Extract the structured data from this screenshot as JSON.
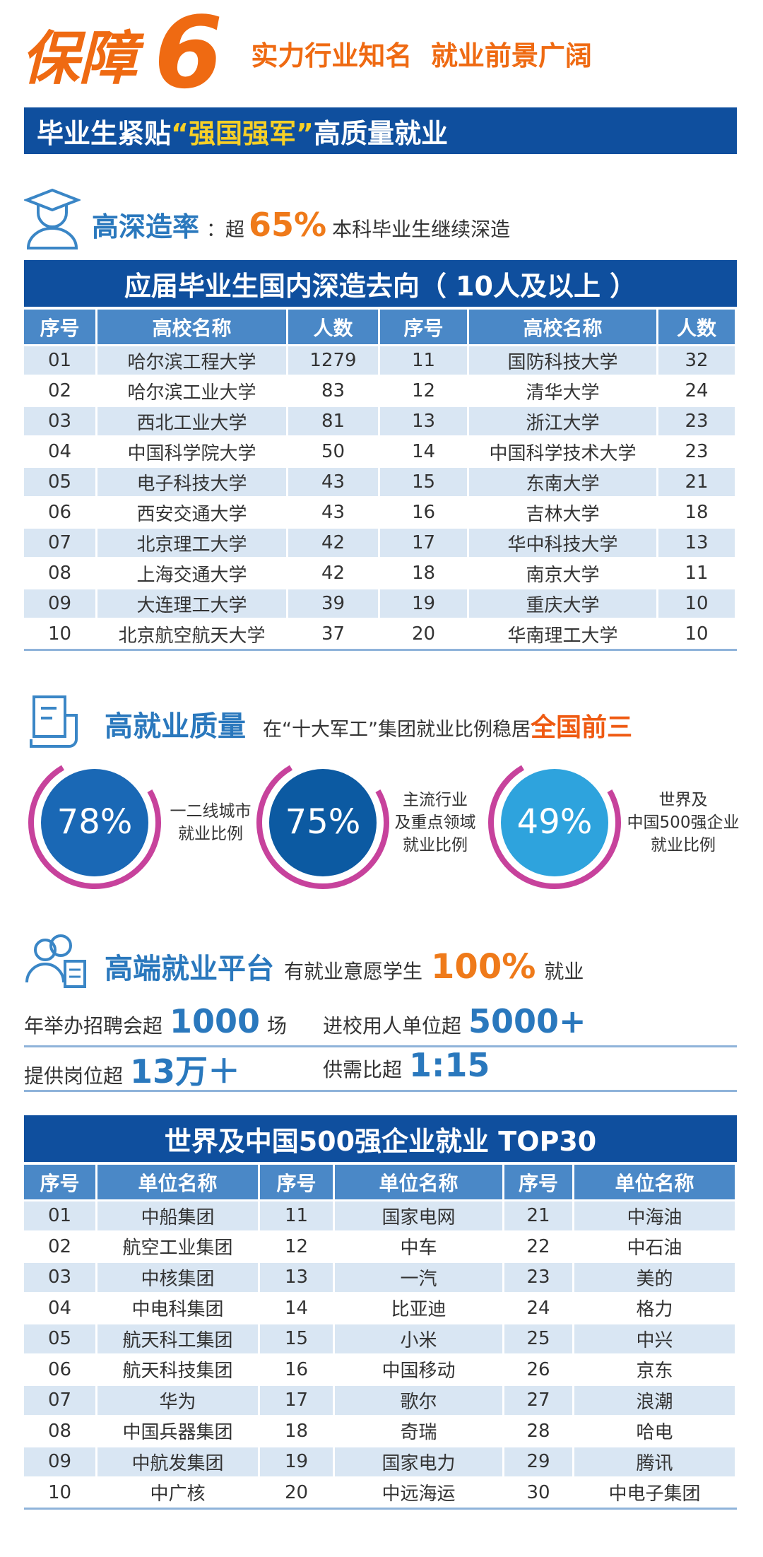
{
  "header": {
    "title": "保障",
    "number": "6",
    "slogan": "实力行业知名  就业前景广阔",
    "banner_prefix": "毕业生紧贴",
    "banner_highlight": "“强国强军”",
    "banner_suffix": "高质量就业"
  },
  "further_study": {
    "title": "高深造率",
    "prefix": "：超",
    "stat": "65%",
    "text": "本科毕业生继续深造"
  },
  "table1": {
    "title": "应届毕业生国内深造去向（ 10人及以上 ）",
    "columns": [
      "序号",
      "高校名称",
      "人数",
      "序号",
      "高校名称",
      "人数"
    ],
    "rows": [
      [
        "01",
        "哈尔滨工程大学",
        1279,
        "11",
        "国防科技大学",
        32
      ],
      [
        "02",
        "哈尔滨工业大学",
        83,
        "12",
        "清华大学",
        24
      ],
      [
        "03",
        "西北工业大学",
        81,
        "13",
        "浙江大学",
        23
      ],
      [
        "04",
        "中国科学院大学",
        50,
        "14",
        "中国科学技术大学",
        23
      ],
      [
        "05",
        "电子科技大学",
        43,
        "15",
        "东南大学",
        21
      ],
      [
        "06",
        "西安交通大学",
        43,
        "16",
        "吉林大学",
        18
      ],
      [
        "07",
        "北京理工大学",
        42,
        "17",
        "华中科技大学",
        13
      ],
      [
        "08",
        "上海交通大学",
        42,
        "18",
        "南京大学",
        11
      ],
      [
        "09",
        "大连理工大学",
        39,
        "19",
        "重庆大学",
        10
      ],
      [
        "10",
        "北京航空航天大学",
        37,
        "20",
        "华南理工大学",
        10
      ]
    ]
  },
  "employment_quality": {
    "title": "高就业质量",
    "text": "在“十大军工”集团就业比例稳居",
    "highlight": "全国前三",
    "stats": [
      {
        "value": "78%",
        "caption": [
          "一二线城市",
          "就业比例"
        ]
      },
      {
        "value": "75%",
        "caption": [
          "主流行业",
          "及重点领域",
          "就业比例"
        ]
      },
      {
        "value": "49%",
        "caption": [
          "世界及",
          "中国500强企业",
          "就业比例"
        ]
      }
    ]
  },
  "platform": {
    "title": "高端就业平台",
    "text": "有就业意愿学生",
    "stat": "100%",
    "suffix": "就业",
    "facts": [
      {
        "label": "年举办招聘会超",
        "value": "1000",
        "suffix": "场"
      },
      {
        "label": "进校用人单位超",
        "value": "5000+"
      },
      {
        "label": "提供岗位超",
        "value": "13万＋"
      },
      {
        "label": "供需比超",
        "value": "1:15"
      }
    ]
  },
  "table2": {
    "title": "世界及中国500强企业就业  TOP30",
    "columns": [
      "序号",
      "单位名称",
      "序号",
      "单位名称",
      "序号",
      "单位名称"
    ],
    "rows": [
      [
        "01",
        "中船集团",
        "11",
        "国家电网",
        "21",
        "中海油"
      ],
      [
        "02",
        "航空工业集团",
        "12",
        "中车",
        "22",
        "中石油"
      ],
      [
        "03",
        "中核集团",
        "13",
        "一汽",
        "23",
        "美的"
      ],
      [
        "04",
        "中电科集团",
        "14",
        "比亚迪",
        "24",
        "格力"
      ],
      [
        "05",
        "航天科工集团",
        "15",
        "小米",
        "25",
        "中兴"
      ],
      [
        "06",
        "航天科技集团",
        "16",
        "中国移动",
        "26",
        "京东"
      ],
      [
        "07",
        "华为",
        "17",
        "歌尔",
        "27",
        "浪潮"
      ],
      [
        "08",
        "中国兵器集团",
        "18",
        "奇瑞",
        "28",
        "哈电"
      ],
      [
        "09",
        "中航发集团",
        "19",
        "国家电力",
        "29",
        "腾讯"
      ],
      [
        "10",
        "中广核",
        "20",
        "中远海运",
        "30",
        "中电子集团"
      ]
    ]
  }
}
